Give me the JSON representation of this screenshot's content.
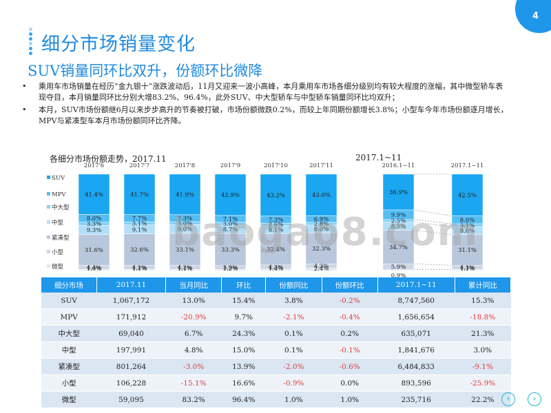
{
  "page_number": "4",
  "title": "细分市场销量变化",
  "subtitle": "SUV销量同环比双升，份额环比微降",
  "bullets": [
    "乘用车市场销量在经历”金九银十”涨跌波动后，11月又迎来一波小高峰，本月乘用车市场各细分级别均有较大程度的涨幅，其中微型轿车表现夺目，本月销量同环比分别大增83.2%、96.4%，此外SUV、中大型轿车与中型轿车销量同环比均双升；",
    "本月，SUV市场份额继6月以来步步高升的节奏被打破，市场份额微跌0.2%，而较上年同期份额增长3.8%；小型车今年市场份额逐月增长，MPV与紧凑型车本月市场份额同环比齐降。"
  ],
  "watermark": "baogao8.com",
  "chart_data": {
    "type": "bar",
    "stacked": true,
    "title_left": "各细分市场份额走势，2017.11",
    "title_right": "2017.1~11",
    "categories": [
      "2017'6",
      "2017'7",
      "2017'8",
      "2017'9",
      "2017'10",
      "2017'11",
      "2016.1~11",
      "2017.1~11"
    ],
    "legend": [
      "SUV",
      "MPV",
      "中大型",
      "中型",
      "紧凑型",
      "小型",
      "微型"
    ],
    "colors": [
      "#1aa6f0",
      "#55bdf4",
      "#86cff6",
      "#b2dff8",
      "#b9c7dc",
      "#cdd6e5",
      "#e2e6ee"
    ],
    "series": [
      {
        "name": "SUV",
        "values": [
          41.4,
          41.7,
          41.9,
          42.9,
          43.2,
          43.0,
          36.9,
          42.5
        ],
        "labels": [
          "41.4%",
          "41.7%",
          "41.9%",
          "42.9%",
          "43.2%",
          "43.0%",
          "36.9%",
          "42.5%"
        ]
      },
      {
        "name": "MPV",
        "values": [
          8.0,
          7.7,
          7.3,
          7.1,
          7.3,
          6.9,
          9.9,
          8.0
        ],
        "labels": [
          "8.0%",
          "7.7%",
          "7.3%",
          "7.1%",
          "7.3%",
          "6.9%",
          "9.9%",
          "8.0%"
        ]
      },
      {
        "name": "中大型",
        "values": [
          3.3,
          3.1,
          3.0,
          3.0,
          2.6,
          2.8,
          2.5,
          3.1
        ],
        "labels": [
          "3.3%",
          "3.1%",
          "3.0%",
          "3.0%",
          "2.6%",
          "2.8%",
          "2.5%",
          "3.1%"
        ]
      },
      {
        "name": "中型",
        "values": [
          9.3,
          9.1,
          9.0,
          8.7,
          8.1,
          8.0,
          8.5,
          8.0
        ],
        "labels": [
          "9.3%",
          "9.1%",
          "9.0%",
          "8.7%",
          "8.1%",
          "8.0%",
          "8.5%",
          "8.0%"
        ]
      },
      {
        "name": "紧凑型",
        "values": [
          31.6,
          32.6,
          33.1,
          33.3,
          32.4,
          32.3,
          34.7,
          31.1
        ],
        "labels": [
          "31.6%",
          "32.6%",
          "33.1%",
          "33.3%",
          "32.4%",
          "32.3%",
          "34.7%",
          "31.1%"
        ]
      },
      {
        "name": "小型",
        "values": [
          4.4,
          4.2,
          4.2,
          3.9,
          4.3,
          4.3,
          5.9,
          4.3
        ],
        "labels": [
          "4.4%",
          "4.2%",
          "4.2%",
          "3.9%",
          "4.3%",
          "4.3%",
          "5.9%",
          "4.3%"
        ]
      },
      {
        "name": "微型",
        "values": [
          1.0,
          1.1,
          1.1,
          1.2,
          1.4,
          2.4,
          0.9,
          1.1
        ],
        "labels": [
          "1.0%",
          "1.1%",
          "1.1%",
          "1.2%",
          "1.4%",
          "2.4%",
          "0.9%",
          "1.1%"
        ]
      }
    ]
  },
  "table": {
    "headers": [
      "细分市场",
      "2017.11",
      "当月同比",
      "环比",
      "份额同比",
      "份额环比",
      "2017.1~11",
      "累计同比"
    ],
    "rows": [
      [
        "SUV",
        "1,067,172",
        "13.0%",
        "15.4%",
        "3.8%",
        "-0.2%",
        "8,747,560",
        "15.3%"
      ],
      [
        "MPV",
        "171,912",
        "-20.9%",
        "9.7%",
        "-2.1%",
        "-0.4%",
        "1,656,654",
        "-18.8%"
      ],
      [
        "中大型",
        "69,040",
        "6.7%",
        "24.3%",
        "0.1%",
        "0.2%",
        "635,071",
        "21.3%"
      ],
      [
        "中型",
        "197,991",
        "4.8%",
        "15.0%",
        "0.1%",
        "-0.1%",
        "1,841,676",
        "3.0%"
      ],
      [
        "紧凑型",
        "801,264",
        "-3.0%",
        "13.9%",
        "-2.0%",
        "-0.6%",
        "6,484,833",
        "-9.1%"
      ],
      [
        "小型",
        "106,228",
        "-15.1%",
        "16.6%",
        "-0.9%",
        "0.0%",
        "893,596",
        "-25.9%"
      ],
      [
        "微型",
        "59,095",
        "83.2%",
        "96.4%",
        "1.0%",
        "1.0%",
        "235,716",
        "22.2%"
      ]
    ]
  },
  "nav": {
    "prev": "‹",
    "next": "›"
  }
}
